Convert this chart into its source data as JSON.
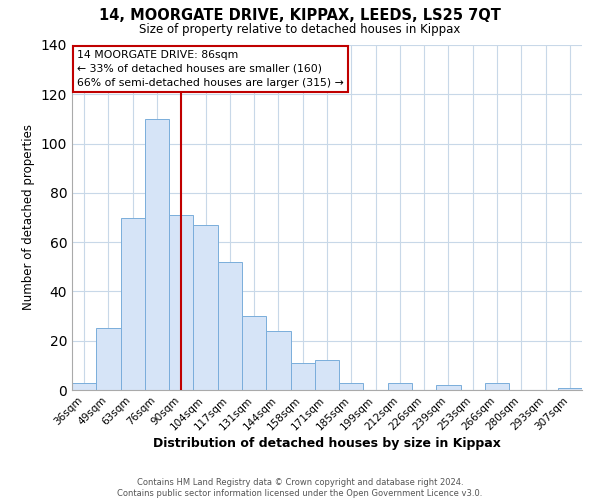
{
  "title": "14, MOORGATE DRIVE, KIPPAX, LEEDS, LS25 7QT",
  "subtitle": "Size of property relative to detached houses in Kippax",
  "xlabel": "Distribution of detached houses by size in Kippax",
  "ylabel": "Number of detached properties",
  "bin_labels": [
    "36sqm",
    "49sqm",
    "63sqm",
    "76sqm",
    "90sqm",
    "104sqm",
    "117sqm",
    "131sqm",
    "144sqm",
    "158sqm",
    "171sqm",
    "185sqm",
    "199sqm",
    "212sqm",
    "226sqm",
    "239sqm",
    "253sqm",
    "266sqm",
    "280sqm",
    "293sqm",
    "307sqm"
  ],
  "bar_values": [
    3,
    25,
    70,
    110,
    71,
    67,
    52,
    30,
    24,
    11,
    12,
    3,
    0,
    3,
    0,
    2,
    0,
    3,
    0,
    0,
    1
  ],
  "bar_color": "#d6e4f7",
  "bar_edge_color": "#7aaddb",
  "vline_x": 4,
  "vline_color": "#c00000",
  "annotation_title": "14 MOORGATE DRIVE: 86sqm",
  "annotation_line1": "← 33% of detached houses are smaller (160)",
  "annotation_line2": "66% of semi-detached houses are larger (315) →",
  "annotation_box_color": "#ffffff",
  "annotation_box_edge": "#c00000",
  "ylim": [
    0,
    140
  ],
  "yticks": [
    0,
    20,
    40,
    60,
    80,
    100,
    120,
    140
  ],
  "footer_line1": "Contains HM Land Registry data © Crown copyright and database right 2024.",
  "footer_line2": "Contains public sector information licensed under the Open Government Licence v3.0.",
  "background_color": "#ffffff",
  "grid_color": "#c8d8e8"
}
